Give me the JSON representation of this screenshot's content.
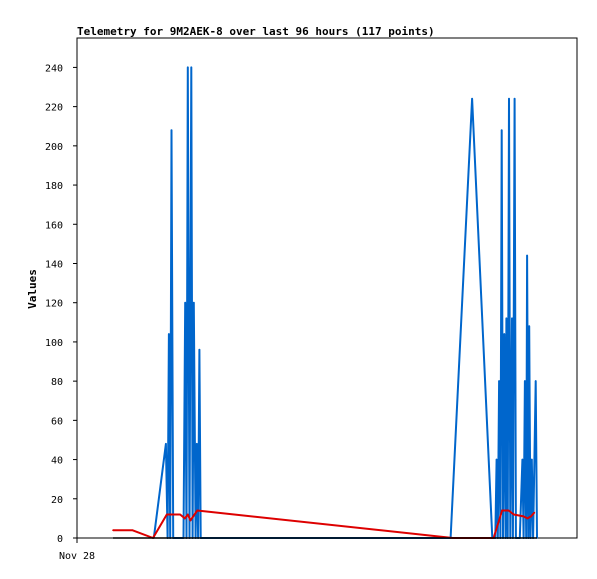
{
  "chart_data": {
    "type": "line",
    "title": "Telemetry for 9M2AEK-8 over last 96 hours (117 points)",
    "ylabel": "Values",
    "xlabel": "",
    "ylim": [
      0,
      255
    ],
    "xlim": [
      0,
      96
    ],
    "yticks": [
      0,
      20,
      40,
      60,
      80,
      100,
      120,
      140,
      160,
      180,
      200,
      220,
      240
    ],
    "xticks": [
      {
        "x": 0,
        "label": "Nov 28"
      }
    ],
    "grid": false,
    "legend": "none",
    "series": [
      {
        "color": "#0066cc",
        "points": [
          [
            9.5,
            0
          ],
          [
            12.3,
            48
          ],
          [
            12.7,
            0
          ],
          [
            13.0,
            104
          ],
          [
            13.3,
            0
          ],
          [
            13.6,
            208
          ],
          [
            14.0,
            0
          ],
          [
            16.4,
            0
          ],
          [
            16.8,
            120
          ],
          [
            17.1,
            0
          ],
          [
            17.4,
            240
          ],
          [
            17.8,
            0
          ],
          [
            18.2,
            240
          ],
          [
            18.5,
            0
          ],
          [
            18.8,
            120
          ],
          [
            19.2,
            0
          ],
          [
            19.5,
            48
          ],
          [
            19.8,
            0
          ],
          [
            20.1,
            96
          ],
          [
            20.4,
            0
          ],
          [
            78.5,
            0
          ],
          [
            83.5,
            224
          ],
          [
            88.2,
            0
          ],
          [
            88.9,
            0
          ],
          [
            89.2,
            40
          ],
          [
            89.5,
            0
          ],
          [
            89.8,
            80
          ],
          [
            90.1,
            0
          ],
          [
            90.4,
            208
          ],
          [
            90.7,
            0
          ],
          [
            91.0,
            104
          ],
          [
            91.3,
            0
          ],
          [
            91.5,
            112
          ],
          [
            91.8,
            0
          ],
          [
            92.1,
            224
          ],
          [
            92.4,
            0
          ],
          [
            92.8,
            112
          ],
          [
            93.0,
            0
          ],
          [
            93.4,
            224
          ],
          [
            93.7,
            0
          ],
          [
            94.6,
            0
          ],
          [
            95.2,
            40
          ],
          [
            95.5,
            0
          ],
          [
            95.8,
            80
          ],
          [
            96.1,
            0
          ],
          [
            96.3,
            144
          ],
          [
            96.6,
            0
          ],
          [
            96.8,
            108
          ],
          [
            97.1,
            0
          ],
          [
            97.4,
            40
          ],
          [
            97.7,
            0
          ],
          [
            98.3,
            80
          ],
          [
            98.6,
            0
          ]
        ]
      },
      {
        "color": "#dd0000",
        "points": [
          [
            0,
            4
          ],
          [
            4.5,
            4
          ],
          [
            9.3,
            0
          ],
          [
            12.5,
            12
          ],
          [
            15.6,
            12
          ],
          [
            16.7,
            10
          ],
          [
            17.4,
            12
          ],
          [
            18.0,
            9
          ],
          [
            19.6,
            14
          ],
          [
            79,
            0
          ],
          [
            88.5,
            0
          ],
          [
            90.5,
            14
          ],
          [
            92.0,
            14
          ],
          [
            93.2,
            12
          ],
          [
            95.5,
            11
          ],
          [
            96.4,
            10
          ],
          [
            97.2,
            11
          ],
          [
            98.0,
            13
          ]
        ]
      },
      {
        "color": "#000000",
        "points": [
          [
            0,
            0
          ],
          [
            98.6,
            0
          ]
        ]
      }
    ]
  }
}
